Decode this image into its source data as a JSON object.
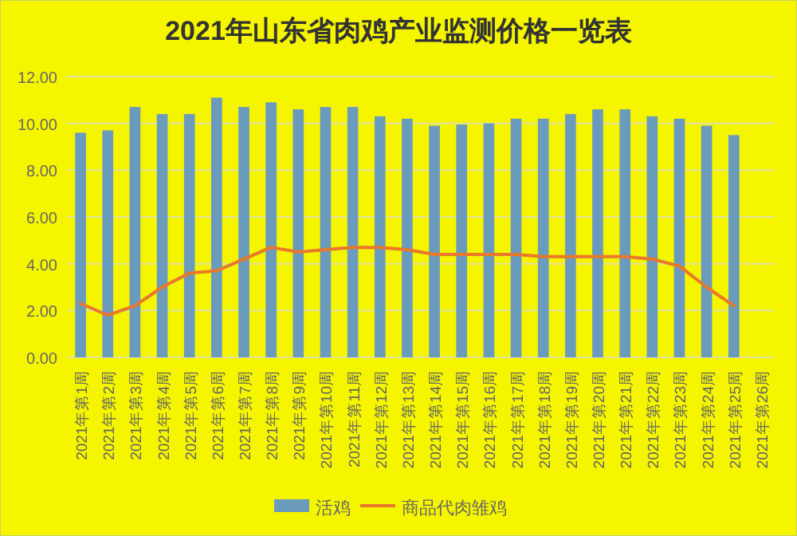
{
  "chart_data": {
    "type": "bar",
    "title": "2021年山东省肉鸡产业监测价格一览表",
    "categories": [
      "2021年第1周",
      "2021年第2周",
      "2021年第3周",
      "2021年第4周",
      "2021年第5周",
      "2021年第6周",
      "2021年第7周",
      "2021年第8周",
      "2021年第9周",
      "2021年第10周",
      "2021年第11周",
      "2021年第12周",
      "2021年第13周",
      "2021年第14周",
      "2021年第15周",
      "2021年第16周",
      "2021年第17周",
      "2021年第18周",
      "2021年第19周",
      "2021年第20周",
      "2021年第21周",
      "2021年第22周",
      "2021年第23周",
      "2021年第24周",
      "2021年第25周",
      "2021年第26周"
    ],
    "series": [
      {
        "name": "活鸡",
        "color": "#6a9bbd",
        "values": [
          9.6,
          9.7,
          10.7,
          10.4,
          10.4,
          11.1,
          10.7,
          10.9,
          10.6,
          10.7,
          10.7,
          10.3,
          10.2,
          9.9,
          9.95,
          10.0,
          10.2,
          10.2,
          10.4,
          10.6,
          10.6,
          10.3,
          10.2,
          9.9,
          9.5,
          null
        ]
      },
      {
        "name": "商品代肉雏鸡",
        "type": "line",
        "color": "#e8782a",
        "values": [
          2.3,
          1.8,
          2.2,
          3.0,
          3.6,
          3.7,
          4.2,
          4.7,
          4.5,
          4.6,
          4.7,
          4.7,
          4.6,
          4.4,
          4.4,
          4.4,
          4.4,
          4.3,
          4.3,
          4.3,
          4.3,
          4.2,
          3.9,
          3.0,
          2.2,
          null
        ]
      }
    ],
    "ylim": [
      0,
      12
    ],
    "yticks": [
      {
        "value": 0,
        "label": "0.00"
      },
      {
        "value": 2,
        "label": "2.00"
      },
      {
        "value": 4,
        "label": "4.00"
      },
      {
        "value": 6,
        "label": "6.00"
      },
      {
        "value": 8,
        "label": "8.00"
      },
      {
        "value": 10,
        "label": "10.00"
      },
      {
        "value": 12,
        "label": "12.00"
      }
    ],
    "grid": "y",
    "legend": "bottom"
  }
}
